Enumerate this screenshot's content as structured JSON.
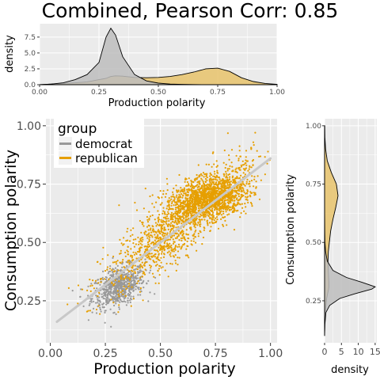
{
  "title": "Combined, Pearson Corr: 0.85",
  "colors": {
    "panel_bg": "#ebebeb",
    "grid": "#ffffff",
    "democrat": "#999999",
    "republican": "#e69f00",
    "democrat_fill": "#bdbdbd",
    "republican_fill": "#e8c36b",
    "fit_line": "#c8c8c8"
  },
  "chart_data": [
    {
      "id": "top_density",
      "type": "area",
      "xlabel": "Production polarity",
      "ylabel": "density",
      "xlim": [
        0.0,
        1.0
      ],
      "ylim": [
        0,
        9.6
      ],
      "x_ticks": [
        0.0,
        0.25,
        0.5,
        0.75,
        1.0
      ],
      "x_tick_labels": [
        "0.00",
        "0.25",
        "0.50",
        "0.75",
        "1.00"
      ],
      "y_ticks": [
        0,
        2.5,
        5.0,
        7.5
      ],
      "y_tick_labels": [
        "0.0",
        "2.5",
        "5.0",
        "7.5"
      ],
      "grid": true,
      "x": [
        0.0,
        0.05,
        0.1,
        0.15,
        0.2,
        0.25,
        0.28,
        0.3,
        0.32,
        0.35,
        0.4,
        0.45,
        0.5,
        0.55,
        0.6,
        0.65,
        0.7,
        0.75,
        0.8,
        0.85,
        0.9,
        0.95,
        1.0
      ],
      "series": [
        {
          "group": "democrat",
          "values": [
            0.0,
            0.1,
            0.3,
            0.8,
            1.6,
            3.5,
            7.5,
            8.9,
            7.8,
            4.4,
            1.6,
            0.6,
            0.25,
            0.1,
            0.05,
            0.03,
            0.0,
            0.0,
            0.0,
            0.0,
            0.0,
            0.0,
            0.0
          ]
        },
        {
          "group": "republican",
          "values": [
            0.0,
            0.1,
            0.2,
            0.3,
            0.45,
            0.8,
            1.0,
            1.3,
            1.4,
            1.35,
            1.15,
            1.1,
            1.15,
            1.3,
            1.6,
            2.0,
            2.5,
            2.6,
            2.1,
            1.1,
            0.5,
            0.2,
            0.05
          ]
        }
      ]
    },
    {
      "id": "scatter",
      "type": "scatter",
      "xlabel": "Production polarity",
      "ylabel": "Consumption polarity",
      "xlim": [
        -0.02,
        1.03
      ],
      "ylim": [
        0.07,
        1.03
      ],
      "x_ticks": [
        0.0,
        0.25,
        0.5,
        0.75,
        1.0
      ],
      "x_tick_labels": [
        "0.00",
        "0.25",
        "0.50",
        "0.75",
        "1.00"
      ],
      "y_ticks": [
        0.25,
        0.5,
        0.75,
        1.0
      ],
      "y_tick_labels": [
        "0.25",
        "0.50",
        "0.75",
        "1.00"
      ],
      "grid": true,
      "legend_title": "group",
      "legend_position": "top-left",
      "fit_line": {
        "x": [
          0.03,
          1.0
        ],
        "y": [
          0.16,
          0.86
        ]
      },
      "series": [
        {
          "group": "democrat",
          "center": [
            0.31,
            0.31
          ],
          "spread": [
            0.06,
            0.04
          ],
          "count": 700
        },
        {
          "group": "republican",
          "center": [
            0.6,
            0.58
          ],
          "spread": [
            0.17,
            0.14
          ],
          "count": 2600
        }
      ]
    },
    {
      "id": "right_density",
      "type": "area",
      "orientation": "horizontal",
      "xlabel": "density",
      "ylabel": "Consumption polarity",
      "xlim": [
        0,
        15.5
      ],
      "ylim": [
        0.07,
        1.03
      ],
      "x_ticks": [
        0,
        5,
        10,
        15
      ],
      "x_tick_labels": [
        "0",
        "5",
        "10",
        "15"
      ],
      "y_ticks": [
        0.25,
        0.5,
        0.75,
        1.0
      ],
      "y_tick_labels": [
        "0.25",
        "0.50",
        "0.75",
        "1.00"
      ],
      "grid": true,
      "y": [
        0.1,
        0.15,
        0.2,
        0.23,
        0.26,
        0.28,
        0.3,
        0.31,
        0.33,
        0.35,
        0.38,
        0.42,
        0.46,
        0.5,
        0.55,
        0.6,
        0.65,
        0.7,
        0.75,
        0.8,
        0.85,
        0.9,
        0.95,
        1.0
      ],
      "series": [
        {
          "group": "democrat",
          "values": [
            0.0,
            0.1,
            0.4,
            1.5,
            4.5,
            9.0,
            14.0,
            15.0,
            11.0,
            6.5,
            2.5,
            0.8,
            0.3,
            0.1,
            0.05,
            0.02,
            0.0,
            0.0,
            0.0,
            0.0,
            0.0,
            0.0,
            0.0,
            0.0
          ]
        },
        {
          "group": "republican",
          "values": [
            0.0,
            0.05,
            0.2,
            0.4,
            0.6,
            0.9,
            1.2,
            1.3,
            1.3,
            1.2,
            1.1,
            1.0,
            1.1,
            1.4,
            1.8,
            2.5,
            3.3,
            4.0,
            3.5,
            2.0,
            0.8,
            0.3,
            0.1,
            0.05
          ]
        }
      ]
    }
  ]
}
